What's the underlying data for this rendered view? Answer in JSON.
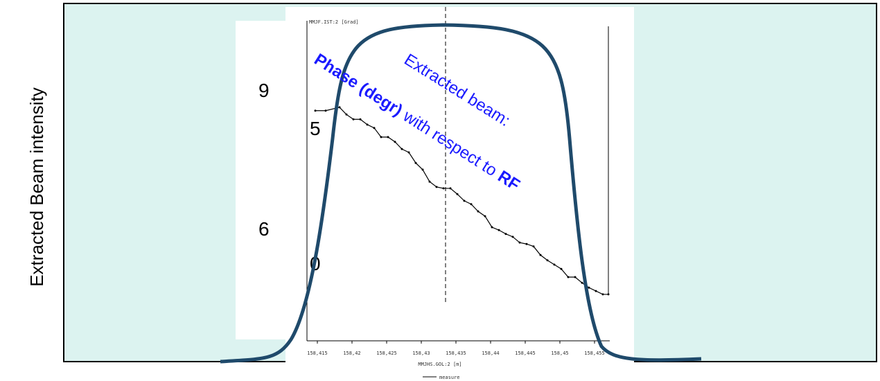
{
  "y_axis_title": "Extracted Beam intensity",
  "annotation": {
    "line1": "Extracted beam:",
    "bold1": "Phase (degr)",
    "middle": "with respect to",
    "bold2": "RF"
  },
  "digits": [
    "9",
    "5",
    "6",
    "0"
  ],
  "chart_data": {
    "type": "line",
    "y_label": "MMJF.IST:2 [Grad]",
    "x_label": "MMJHS.GOL:2 [m]",
    "x": [
      158.4147,
      158.4162,
      158.4182,
      158.4192,
      158.4202,
      158.4212,
      158.4222,
      158.4232,
      158.4242,
      158.4252,
      158.4262,
      158.4272,
      158.4282,
      158.4292,
      158.4302,
      158.4312,
      158.4322,
      158.4332,
      158.4342,
      158.4352,
      158.4362,
      158.4372,
      158.4382,
      158.4392,
      158.4402,
      158.4412,
      158.4422,
      158.4432,
      158.4442,
      158.4452,
      158.4462,
      158.4472,
      158.4482,
      158.4492,
      158.4502,
      158.4512,
      158.4522,
      158.4532,
      158.4542,
      158.4552,
      158.4562,
      158.457
    ],
    "series": [
      {
        "name": "measure",
        "color": "#000000",
        "values": [
          87.7,
          87.7,
          88.4,
          86.9,
          85.9,
          85.9,
          84.8,
          84.1,
          82.2,
          82.2,
          81.2,
          79.7,
          79.0,
          76.8,
          75.4,
          72.9,
          71.8,
          71.5,
          71.5,
          70.3,
          68.9,
          68.2,
          66.7,
          65.7,
          63.4,
          62.8,
          62.0,
          61.4,
          60.2,
          59.9,
          59.4,
          57.6,
          56.5,
          55.6,
          54.7,
          53.0,
          53.0,
          51.8,
          50.8,
          50.1,
          49.4,
          49.4
        ]
      }
    ],
    "xlim": [
      158.4137,
      158.4572
    ],
    "ylim": [
      40,
      105
    ],
    "xticks": [
      {
        "value": 158.415,
        "label": "158,415"
      },
      {
        "value": 158.42,
        "label": "158,42"
      },
      {
        "value": 158.425,
        "label": "158,425"
      },
      {
        "value": 158.43,
        "label": "158,43"
      },
      {
        "value": 158.435,
        "label": "158,435"
      },
      {
        "value": 158.44,
        "label": "158,44"
      },
      {
        "value": 158.445,
        "label": "158,445"
      },
      {
        "value": 158.45,
        "label": "158,45"
      },
      {
        "value": 158.455,
        "label": "158,455"
      }
    ]
  }
}
